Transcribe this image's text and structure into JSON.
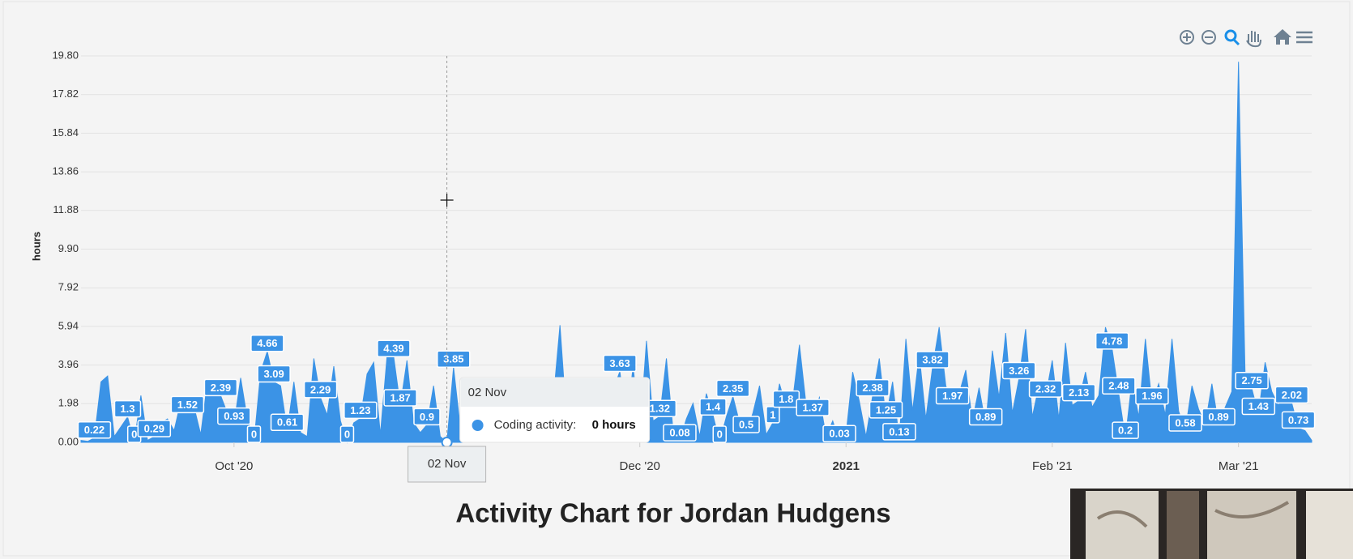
{
  "chart_data": {
    "type": "area",
    "title": "Activity Chart for Jordan Hudgens",
    "y_label": "hours",
    "color": "#3b93e6",
    "grid": true,
    "x": [
      "2020-09-08",
      "2020-09-09",
      "2020-09-10",
      "2020-09-11",
      "2020-09-12",
      "2020-09-13",
      "2020-09-14",
      "2020-09-15",
      "2020-09-16",
      "2020-09-17",
      "2020-09-18",
      "2020-09-19",
      "2020-09-20",
      "2020-09-21",
      "2020-09-22",
      "2020-09-23",
      "2020-09-24",
      "2020-09-25",
      "2020-09-26",
      "2020-09-27",
      "2020-09-28",
      "2020-09-29",
      "2020-09-30",
      "2020-10-01",
      "2020-10-02",
      "2020-10-03",
      "2020-10-04",
      "2020-10-05",
      "2020-10-06",
      "2020-10-07",
      "2020-10-08",
      "2020-10-09",
      "2020-10-10",
      "2020-10-11",
      "2020-10-12",
      "2020-10-13",
      "2020-10-14",
      "2020-10-15",
      "2020-10-16",
      "2020-10-17",
      "2020-10-18",
      "2020-10-19",
      "2020-10-20",
      "2020-10-21",
      "2020-10-22",
      "2020-10-23",
      "2020-10-24",
      "2020-10-25",
      "2020-10-26",
      "2020-10-27",
      "2020-10-28",
      "2020-10-29",
      "2020-10-30",
      "2020-10-31",
      "2020-11-01",
      "2020-11-02",
      "2020-11-03",
      "2020-11-04",
      "2020-11-05",
      "2020-11-06",
      "2020-11-07",
      "2020-11-08",
      "2020-11-09",
      "2020-11-10",
      "2020-11-11",
      "2020-11-12",
      "2020-11-13",
      "2020-11-14",
      "2020-11-15",
      "2020-11-16",
      "2020-11-17",
      "2020-11-18",
      "2020-11-19",
      "2020-11-20",
      "2020-11-21",
      "2020-11-22",
      "2020-11-23",
      "2020-11-24",
      "2020-11-25",
      "2020-11-26",
      "2020-11-27",
      "2020-11-28",
      "2020-11-29",
      "2020-11-30",
      "2020-12-01",
      "2020-12-02",
      "2020-12-03",
      "2020-12-04",
      "2020-12-05",
      "2020-12-06",
      "2020-12-07",
      "2020-12-08",
      "2020-12-09",
      "2020-12-10",
      "2020-12-11",
      "2020-12-12",
      "2020-12-13",
      "2020-12-14",
      "2020-12-15",
      "2020-12-16",
      "2020-12-17",
      "2020-12-18",
      "2020-12-19",
      "2020-12-20",
      "2020-12-21",
      "2020-12-22",
      "2020-12-23",
      "2020-12-24",
      "2020-12-25",
      "2020-12-26",
      "2020-12-27",
      "2020-12-28",
      "2020-12-29",
      "2020-12-30",
      "2020-12-31",
      "2021-01-01",
      "2021-01-02",
      "2021-01-03",
      "2021-01-04",
      "2021-01-05",
      "2021-01-06",
      "2021-01-07",
      "2021-01-08",
      "2021-01-09",
      "2021-01-10",
      "2021-01-11",
      "2021-01-12",
      "2021-01-13",
      "2021-01-14",
      "2021-01-15",
      "2021-01-16",
      "2021-01-17",
      "2021-01-18",
      "2021-01-19",
      "2021-01-20",
      "2021-01-21",
      "2021-01-22",
      "2021-01-23",
      "2021-01-24",
      "2021-01-25",
      "2021-01-26",
      "2021-01-27",
      "2021-01-28",
      "2021-01-29",
      "2021-01-30",
      "2021-01-31",
      "2021-02-01",
      "2021-02-02",
      "2021-02-03",
      "2021-02-04",
      "2021-02-05",
      "2021-02-06",
      "2021-02-07",
      "2021-02-08",
      "2021-02-09",
      "2021-02-10",
      "2021-02-11",
      "2021-02-12",
      "2021-02-13",
      "2021-02-14",
      "2021-02-15",
      "2021-02-16",
      "2021-02-17",
      "2021-02-18",
      "2021-02-19",
      "2021-02-20",
      "2021-02-21",
      "2021-02-22",
      "2021-02-23",
      "2021-02-24",
      "2021-02-25",
      "2021-02-26",
      "2021-02-27",
      "2021-02-28",
      "2021-03-01",
      "2021-03-02",
      "2021-03-03",
      "2021-03-04",
      "2021-03-05",
      "2021-03-06",
      "2021-03-07",
      "2021-03-08",
      "2021-03-09",
      "2021-03-10",
      "2021-03-11",
      "2021-03-12"
    ],
    "series": [
      {
        "name": "Coding activity",
        "color": "#3b93e6",
        "values": [
          0.1,
          0.05,
          0.22,
          3.1,
          3.4,
          0.3,
          0.8,
          1.3,
          0,
          2.4,
          0.1,
          0.29,
          1.0,
          1.2,
          0.6,
          2.1,
          1.52,
          1.8,
          0.4,
          3.1,
          3.2,
          2.39,
          1.5,
          0.93,
          3.3,
          1.2,
          0,
          3.6,
          4.66,
          3.09,
          2.9,
          0.61,
          3.1,
          0.5,
          0.3,
          4.3,
          2.29,
          1.4,
          3.9,
          1.1,
          0,
          1.0,
          1.23,
          3.5,
          4.1,
          0.4,
          4.4,
          4.39,
          1.87,
          4.2,
          1.0,
          0.5,
          0.9,
          2.9,
          0.3,
          0,
          3.85,
          0.8,
          2.1,
          0.5,
          3.0,
          1.2,
          2.6,
          0.9,
          1.5,
          3.1,
          0.7,
          1.8,
          0.6,
          3.0,
          0.4,
          2.2,
          6.0,
          1.1,
          2.5,
          0.2,
          3.2,
          0.1,
          1.9,
          0.6,
          2.7,
          3.63,
          1.0,
          3.9,
          0.4,
          5.2,
          1.1,
          1.32,
          4.3,
          0.6,
          0.08,
          1.2,
          2.0,
          0.3,
          2.5,
          1.4,
          0,
          1.3,
          2.35,
          1.0,
          0.5,
          1.5,
          2.9,
          0.4,
          1,
          3.0,
          1.8,
          2.2,
          5.0,
          1.9,
          1.37,
          2.3,
          0.3,
          1.1,
          0.03,
          0.4,
          3.6,
          2.1,
          0.3,
          2.38,
          4.3,
          1.25,
          3.1,
          0.13,
          5.3,
          1.6,
          4.5,
          1.2,
          3.82,
          5.9,
          2.9,
          1.97,
          2.5,
          3.7,
          1.1,
          2.8,
          0.89,
          4.7,
          2.3,
          5.6,
          1.5,
          3.26,
          5.8,
          1.3,
          2.9,
          2.32,
          4.2,
          1.2,
          5.1,
          1.9,
          2.13,
          3.6,
          1.8,
          2.4,
          5.9,
          4.78,
          2.48,
          0.2,
          3.2,
          1.3,
          5.3,
          1.96,
          3.0,
          1.4,
          5.3,
          1.6,
          0.58,
          2.9,
          1.7,
          0.9,
          3.0,
          0.89,
          1.8,
          2.6,
          19.5,
          3.3,
          2.75,
          1.43,
          4.1,
          2.6,
          1.9,
          2.5,
          2.02,
          0.73,
          0.6,
          0.1
        ],
        "value_labels": [
          null,
          null,
          "0.22",
          null,
          null,
          null,
          null,
          "1.3",
          "0",
          null,
          null,
          "0.29",
          null,
          null,
          null,
          null,
          "1.52",
          null,
          null,
          null,
          null,
          "2.39",
          null,
          "0.93",
          null,
          null,
          "0",
          null,
          "4.66",
          "3.09",
          null,
          "0.61",
          null,
          null,
          null,
          null,
          "2.29",
          null,
          null,
          null,
          "0",
          null,
          "1.23",
          null,
          null,
          null,
          null,
          "4.39",
          "1.87",
          null,
          null,
          null,
          "0.9",
          null,
          null,
          null,
          "3.85",
          null,
          null,
          null,
          null,
          null,
          null,
          null,
          null,
          null,
          null,
          null,
          null,
          null,
          null,
          null,
          null,
          null,
          null,
          null,
          null,
          null,
          null,
          null,
          null,
          "3.63",
          null,
          null,
          null,
          null,
          null,
          "1.32",
          null,
          null,
          "0.08",
          null,
          null,
          null,
          null,
          "1.4",
          "0",
          null,
          "2.35",
          null,
          "0.5",
          null,
          null,
          null,
          "1",
          null,
          "1.8",
          null,
          null,
          null,
          "1.37",
          null,
          null,
          null,
          "0.03",
          null,
          null,
          null,
          null,
          "2.38",
          null,
          "1.25",
          null,
          "0.13",
          null,
          null,
          null,
          null,
          "3.82",
          null,
          null,
          "1.97",
          null,
          null,
          null,
          null,
          "0.89",
          null,
          null,
          null,
          null,
          "3.26",
          null,
          null,
          null,
          "2.32",
          null,
          null,
          null,
          null,
          "2.13",
          null,
          null,
          null,
          null,
          "4.78",
          "2.48",
          "0.2",
          null,
          null,
          null,
          "1.96",
          null,
          null,
          null,
          null,
          "0.58",
          null,
          null,
          null,
          null,
          "0.89",
          null,
          null,
          null,
          null,
          "2.75",
          "1.43",
          null,
          null,
          null,
          null,
          "2.02",
          "0.73",
          null,
          null
        ]
      }
    ],
    "xlim": [
      "2020-09-08",
      "2021-03-12"
    ],
    "xticks": [
      {
        "value": "2020-10-01",
        "label": "Oct '20"
      },
      {
        "value": "2020-12-01",
        "label": "Dec '20"
      },
      {
        "value": "2021-01-01",
        "label": "2021",
        "bold": true
      },
      {
        "value": "2021-02-01",
        "label": "Feb '21"
      },
      {
        "value": "2021-03-01",
        "label": "Mar '21"
      }
    ],
    "ylim": [
      0,
      19.8
    ],
    "yticks": [
      {
        "value": 0,
        "label": "0.00"
      },
      {
        "value": 1.98,
        "label": "1.98"
      },
      {
        "value": 3.96,
        "label": "3.96"
      },
      {
        "value": 5.94,
        "label": "5.94"
      },
      {
        "value": 7.92,
        "label": "7.92"
      },
      {
        "value": 9.9,
        "label": "9.90"
      },
      {
        "value": 11.88,
        "label": "11.88"
      },
      {
        "value": 13.86,
        "label": "13.86"
      },
      {
        "value": 15.84,
        "label": "15.84"
      },
      {
        "value": 17.82,
        "label": "17.82"
      },
      {
        "value": 19.8,
        "label": "19.80"
      }
    ],
    "tooltip": {
      "index": 55,
      "x_label": "02 Nov",
      "title": "02 Nov",
      "series_label": "Coding activity:",
      "value_text": "0 hours"
    }
  }
}
